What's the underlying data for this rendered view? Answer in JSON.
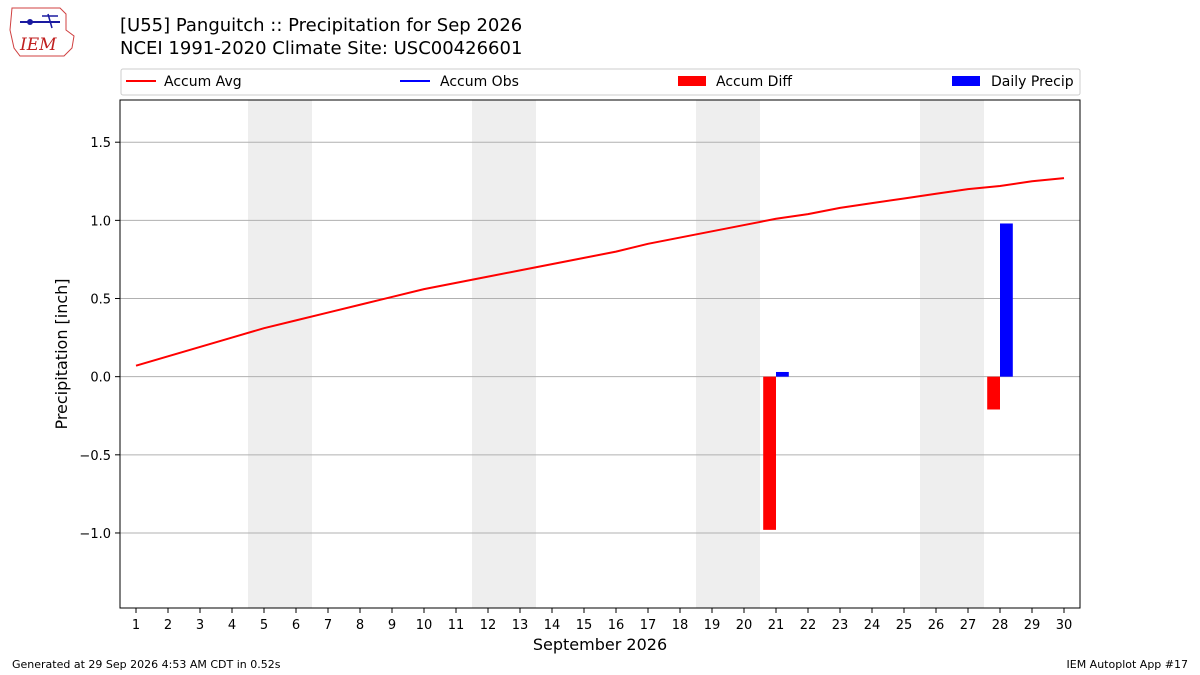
{
  "logo": {
    "text": "IEM"
  },
  "title": {
    "line1": "[U55] Panguitch :: Precipitation for Sep 2026",
    "line2": "NCEI 1991-2020 Climate Site: USC00426601"
  },
  "footer": {
    "left": "Generated at 29 Sep 2026 4:53 AM CDT in 0.52s",
    "right": "IEM Autoplot App #17"
  },
  "colors": {
    "avg": "#ff0000",
    "obs": "#0000ff",
    "diff": "#ff0000",
    "daily": "#0000ff",
    "weekend": "#eeeeee",
    "grid": "#b0b0b0"
  },
  "chart_data": {
    "type": "bar",
    "xlabel": "September 2026",
    "ylabel": "Precipitation [inch]",
    "xlim": [
      0.5,
      30.5
    ],
    "ylim": [
      -1.48,
      1.77
    ],
    "yticks": [
      -1.0,
      -0.5,
      0.0,
      0.5,
      1.0,
      1.5
    ],
    "ytick_labels": [
      "−1.0",
      "−0.5",
      "0.0",
      "0.5",
      "1.0",
      "1.5"
    ],
    "xticks": [
      1,
      2,
      3,
      4,
      5,
      6,
      7,
      8,
      9,
      10,
      11,
      12,
      13,
      14,
      15,
      16,
      17,
      18,
      19,
      20,
      21,
      22,
      23,
      24,
      25,
      26,
      27,
      28,
      29,
      30
    ],
    "grid": "y",
    "legend_placement": "top",
    "shaded_weekends": [
      [
        5,
        6
      ],
      [
        12,
        13
      ],
      [
        19,
        20
      ],
      [
        26,
        27
      ]
    ],
    "series": [
      {
        "name": "Accum Avg",
        "kind": "line",
        "x": [
          1,
          2,
          3,
          4,
          5,
          6,
          7,
          8,
          9,
          10,
          11,
          12,
          13,
          14,
          15,
          16,
          17,
          18,
          19,
          20,
          21,
          22,
          23,
          24,
          25,
          26,
          27,
          28,
          29,
          30
        ],
        "values": [
          0.07,
          0.13,
          0.19,
          0.25,
          0.31,
          0.36,
          0.41,
          0.46,
          0.51,
          0.56,
          0.6,
          0.64,
          0.68,
          0.72,
          0.76,
          0.8,
          0.85,
          0.89,
          0.93,
          0.97,
          1.01,
          1.04,
          1.08,
          1.11,
          1.14,
          1.17,
          1.2,
          1.22,
          1.25,
          1.27
        ]
      },
      {
        "name": "Accum Obs",
        "kind": "line",
        "x": [],
        "values": []
      },
      {
        "name": "Accum Diff",
        "kind": "bar",
        "x": [
          21,
          28
        ],
        "values": [
          -0.98,
          -0.21
        ]
      },
      {
        "name": "Daily Precip",
        "kind": "bar",
        "x": [
          21,
          28
        ],
        "values": [
          0.03,
          0.98
        ]
      }
    ]
  }
}
